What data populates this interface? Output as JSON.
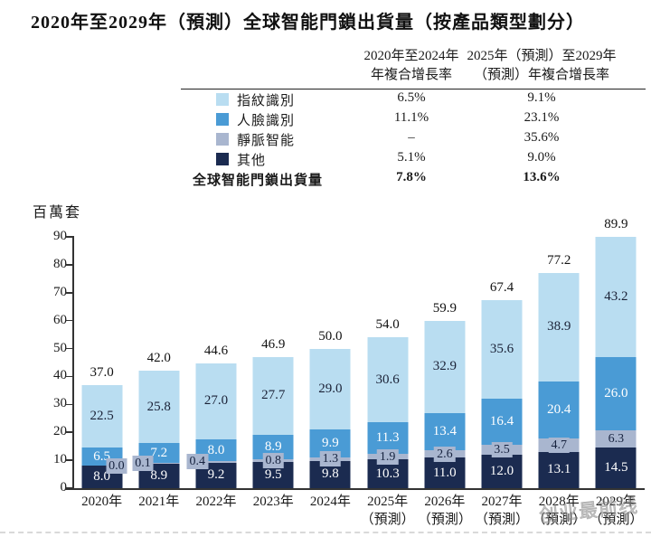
{
  "title": "2020年至2029年（預測）全球智能門鎖出貨量（按產品類型劃分）",
  "colors": {
    "fingerprint": "#b9ddf1",
    "face": "#4a9bd5",
    "vein": "#a9b6cf",
    "others": "#1b2b50",
    "axis": "#333333"
  },
  "table": {
    "header1": [
      "2020年至2024年",
      "年複合增長率"
    ],
    "header2": [
      "2025年（預測）至2029年",
      "（預測）年複合增長率"
    ],
    "rows": [
      {
        "label": "指紋識別",
        "swatch": "#b9ddf1",
        "cagr_2020_2024": "6.5%",
        "cagr_2025_2029": "9.1%"
      },
      {
        "label": "人臉識別",
        "swatch": "#4a9bd5",
        "cagr_2020_2024": "11.1%",
        "cagr_2025_2029": "23.1%"
      },
      {
        "label": "靜脈智能",
        "swatch": "#a9b6cf",
        "cagr_2020_2024": "–",
        "cagr_2025_2029": "35.6%"
      },
      {
        "label": "其他",
        "swatch": "#1b2b50",
        "cagr_2020_2024": "5.1%",
        "cagr_2025_2029": "9.0%"
      }
    ],
    "total_row": {
      "label": "全球智能門鎖出貨量",
      "cagr_2020_2024": "7.8%",
      "cagr_2025_2029": "13.6%"
    }
  },
  "chart_data": {
    "type": "bar",
    "stacked": true,
    "unit_label": "百萬套",
    "ylim": [
      0,
      90
    ],
    "yticks": [
      0,
      10,
      20,
      30,
      40,
      50,
      60,
      70,
      80,
      90
    ],
    "grid": false,
    "categories": [
      {
        "label": "2020年",
        "note": ""
      },
      {
        "label": "2021年",
        "note": ""
      },
      {
        "label": "2022年",
        "note": ""
      },
      {
        "label": "2023年",
        "note": ""
      },
      {
        "label": "2024年",
        "note": ""
      },
      {
        "label": "2025年",
        "note": "（預測）"
      },
      {
        "label": "2026年",
        "note": "（預測）"
      },
      {
        "label": "2027年",
        "note": "（預測）"
      },
      {
        "label": "2028年",
        "note": "（預測）"
      },
      {
        "label": "2029年",
        "note": "（預測）"
      }
    ],
    "stack_order": "bottom-to-top",
    "series": [
      {
        "name": "其他",
        "color": "#1b2b50",
        "values": [
          8.0,
          8.9,
          9.2,
          9.5,
          9.8,
          10.3,
          11.0,
          12.0,
          13.1,
          14.5
        ]
      },
      {
        "name": "靜脈智能",
        "color": "#a9b6cf",
        "values": [
          0.0,
          0.1,
          0.4,
          0.8,
          1.3,
          1.9,
          2.6,
          3.5,
          4.7,
          6.3
        ]
      },
      {
        "name": "人臉識別",
        "color": "#4a9bd5",
        "values": [
          6.5,
          7.2,
          8.0,
          8.9,
          9.9,
          11.3,
          13.4,
          16.4,
          20.4,
          26.0
        ]
      },
      {
        "name": "指紋識別",
        "color": "#b9ddf1",
        "values": [
          22.5,
          25.8,
          27.0,
          27.7,
          29.0,
          30.6,
          32.9,
          35.6,
          38.9,
          43.2
        ]
      }
    ],
    "totals": [
      37.0,
      42.0,
      44.6,
      46.9,
      50.0,
      54.0,
      59.9,
      67.4,
      77.2,
      89.9
    ]
  },
  "watermark": "创业最前线"
}
